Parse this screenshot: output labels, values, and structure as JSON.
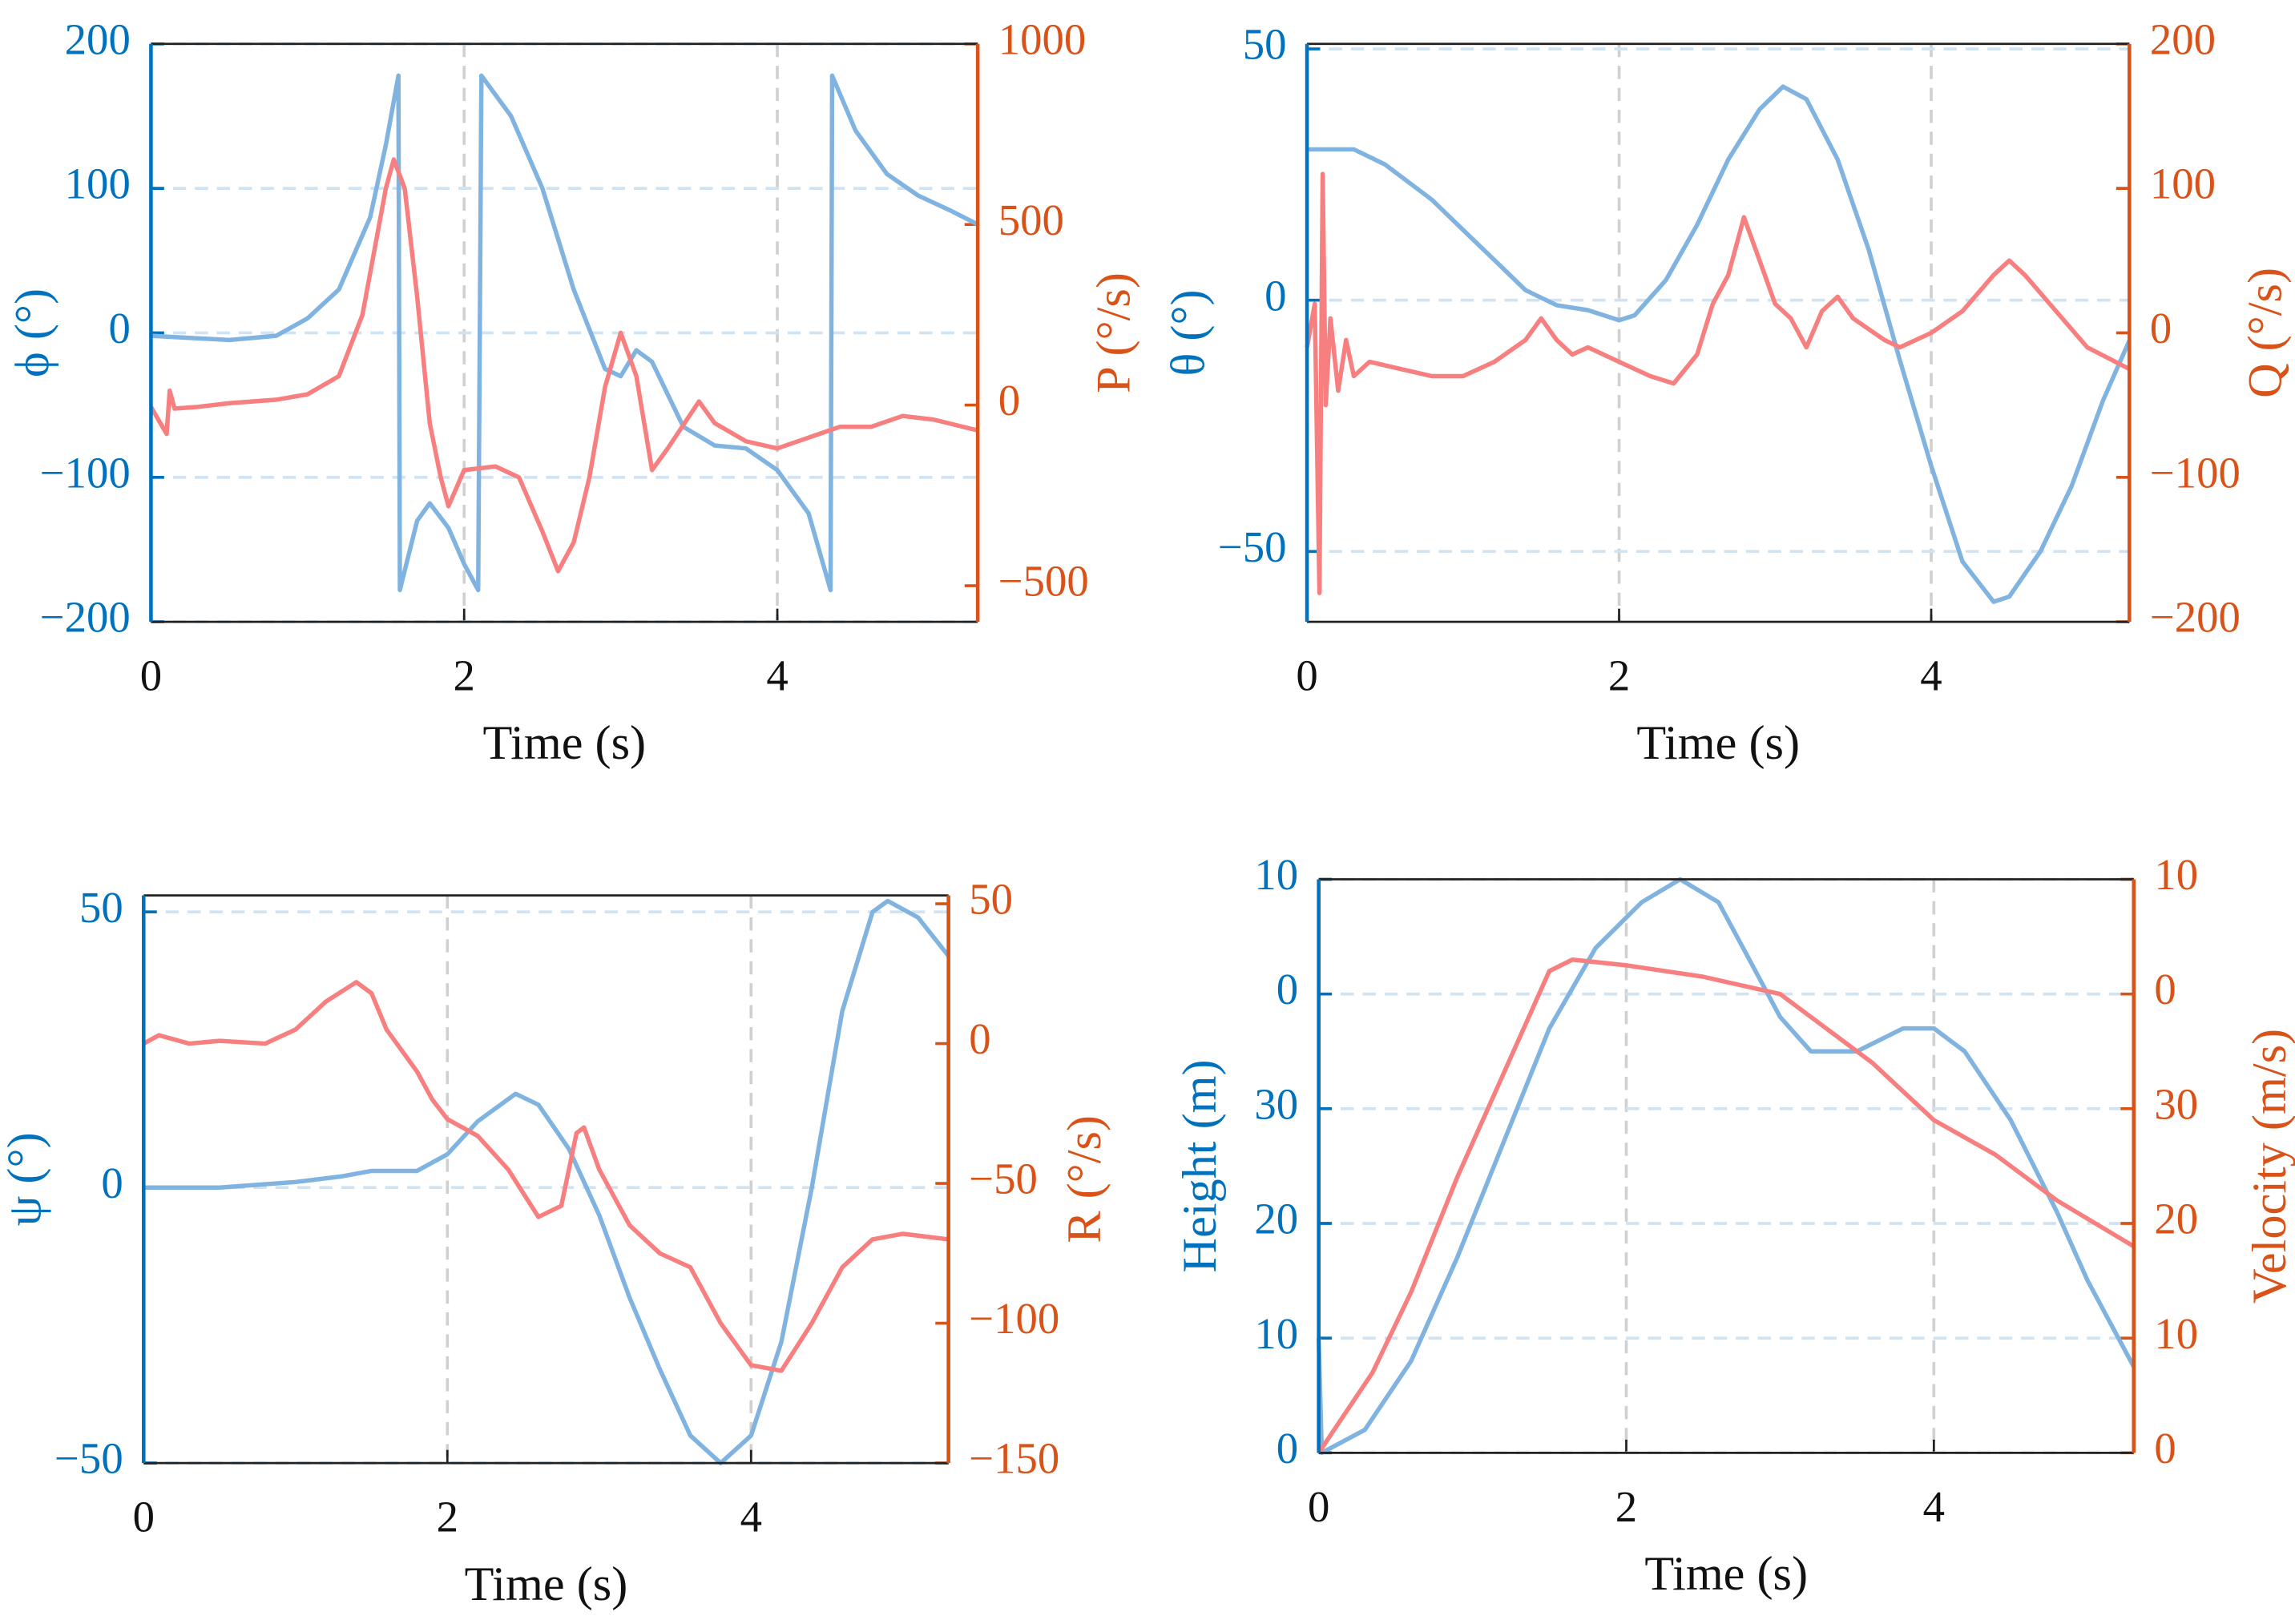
{
  "chart_data": [
    {
      "type": "line",
      "xlabel": "Time (s)",
      "ylabel": "ϕ (°)",
      "y2label": "P (°/s)",
      "xlim": [
        0,
        5.28
      ],
      "xticks": [
        0,
        2,
        4
      ],
      "ylim": [
        -200,
        200
      ],
      "yticks": [
        {
          "value": -200,
          "label": "−200"
        },
        {
          "value": -100,
          "label": "−100"
        },
        0,
        100,
        200
      ],
      "y2lim": [
        -600,
        1000
      ],
      "y2ticks": [
        {
          "value": -500,
          "label": "−500"
        },
        0,
        500,
        1000
      ],
      "grid": true,
      "ycolor": "#0072bd",
      "y2color": "#d95319",
      "series": [
        {
          "color": "#80b3e0",
          "x": [
            0,
            0.5,
            0.8,
            1.0,
            1.2,
            1.4,
            1.5,
            1.58,
            1.59,
            1.7,
            1.78,
            1.9,
            2.0,
            2.09,
            2.11,
            2.3,
            2.5,
            2.7,
            2.9,
            3.0,
            3.1,
            3.2,
            3.4,
            3.6,
            3.8,
            4.0,
            4.2,
            4.34,
            4.35,
            4.5,
            4.7,
            4.9,
            5.1,
            5.28
          ],
          "values": [
            -2,
            -5,
            -2,
            10,
            30,
            80,
            130,
            178,
            -178,
            -130,
            -118,
            -135,
            -160,
            -178,
            178,
            150,
            100,
            30,
            -25,
            -30,
            -12,
            -20,
            -65,
            -78,
            -80,
            -95,
            -125,
            -178,
            178,
            140,
            110,
            95,
            85,
            75
          ]
        },
        {
          "color": "#f77f7f",
          "axis": "y2",
          "x": [
            0,
            0.1,
            0.12,
            0.15,
            0.3,
            0.5,
            0.8,
            1.0,
            1.2,
            1.35,
            1.5,
            1.55,
            1.62,
            1.7,
            1.78,
            1.85,
            1.9,
            2.0,
            2.2,
            2.35,
            2.5,
            2.6,
            2.7,
            2.8,
            2.9,
            3.0,
            3.1,
            3.2,
            3.3,
            3.5,
            3.6,
            3.8,
            4.0,
            4.2,
            4.4,
            4.6,
            4.8,
            5.0,
            5.28
          ],
          "values": [
            -5,
            -80,
            40,
            -10,
            -5,
            5,
            15,
            30,
            80,
            250,
            600,
            680,
            600,
            300,
            -50,
            -200,
            -280,
            -180,
            -170,
            -200,
            -350,
            -460,
            -380,
            -200,
            50,
            200,
            80,
            -180,
            -120,
            10,
            -50,
            -100,
            -120,
            -90,
            -60,
            -60,
            -30,
            -40,
            -70
          ]
        }
      ]
    },
    {
      "type": "line",
      "xlabel": "Time (s)",
      "ylabel": "θ (°)",
      "y2label": "Q (°/s)",
      "xlim": [
        0,
        5.27
      ],
      "xticks": [
        0,
        2,
        4
      ],
      "ylim": [
        -64,
        51
      ],
      "yticks": [
        {
          "value": -50,
          "label": "−50"
        },
        0,
        50
      ],
      "y2lim": [
        -200,
        200
      ],
      "y2ticks": [
        {
          "value": -200,
          "label": "−200"
        },
        {
          "value": -100,
          "label": "−100"
        },
        0,
        100,
        200
      ],
      "grid": true,
      "ycolor": "#0072bd",
      "y2color": "#d95319",
      "series": [
        {
          "color": "#80b3e0",
          "x": [
            0,
            0.3,
            0.5,
            0.8,
            1.0,
            1.2,
            1.4,
            1.6,
            1.8,
            2.0,
            2.1,
            2.3,
            2.5,
            2.7,
            2.9,
            3.05,
            3.2,
            3.4,
            3.6,
            3.8,
            4.0,
            4.2,
            4.4,
            4.5,
            4.7,
            4.9,
            5.1,
            5.27
          ],
          "values": [
            30,
            30,
            27,
            20,
            14,
            8,
            2,
            -1,
            -2,
            -4,
            -3,
            4,
            15,
            28,
            38,
            42.5,
            40,
            28,
            10,
            -12,
            -33,
            -52,
            -60,
            -59,
            -50,
            -37,
            -20,
            -8
          ]
        },
        {
          "color": "#f77f7f",
          "axis": "y2",
          "x": [
            0,
            0.05,
            0.08,
            0.1,
            0.12,
            0.15,
            0.2,
            0.25,
            0.3,
            0.4,
            0.6,
            0.8,
            1.0,
            1.2,
            1.4,
            1.5,
            1.6,
            1.7,
            1.8,
            1.9,
            2.0,
            2.2,
            2.35,
            2.5,
            2.6,
            2.7,
            2.8,
            2.9,
            3.0,
            3.1,
            3.2,
            3.3,
            3.4,
            3.5,
            3.7,
            3.8,
            4.0,
            4.2,
            4.4,
            4.5,
            4.6,
            4.8,
            5.0,
            5.27
          ],
          "values": [
            -10,
            20,
            -180,
            110,
            -50,
            10,
            -40,
            -5,
            -30,
            -20,
            -25,
            -30,
            -30,
            -20,
            -5,
            10,
            -5,
            -15,
            -10,
            -15,
            -20,
            -30,
            -35,
            -15,
            20,
            40,
            80,
            50,
            20,
            10,
            -10,
            15,
            25,
            10,
            -5,
            -10,
            0,
            15,
            40,
            50,
            40,
            15,
            -10,
            -25
          ]
        }
      ]
    },
    {
      "type": "line",
      "xlabel": "Time (s)",
      "ylabel": "ψ (°)",
      "y2label": "R (°/s)",
      "xlim": [
        0,
        5.3
      ],
      "xticks": [
        0,
        2,
        4
      ],
      "ylim": [
        -50,
        53
      ],
      "yticks": [
        {
          "value": -50,
          "label": "−50"
        },
        0,
        50
      ],
      "y2lim": [
        -150,
        53
      ],
      "y2ticks": [
        {
          "value": -150,
          "label": "−150"
        },
        {
          "value": -100,
          "label": "−100"
        },
        {
          "value": -50,
          "label": "−50"
        },
        0,
        50
      ],
      "grid": true,
      "ycolor": "#0072bd",
      "y2color": "#d95319",
      "series": [
        {
          "color": "#80b3e0",
          "x": [
            0,
            0.5,
            1.0,
            1.3,
            1.5,
            1.8,
            2.0,
            2.2,
            2.45,
            2.6,
            2.8,
            3.0,
            3.2,
            3.4,
            3.6,
            3.8,
            4.0,
            4.2,
            4.4,
            4.6,
            4.8,
            4.9,
            5.1,
            5.3
          ],
          "values": [
            0,
            0,
            1,
            2,
            3,
            3,
            6,
            12,
            17,
            15,
            7,
            -5,
            -20,
            -33,
            -45,
            -50,
            -45,
            -28,
            0,
            32,
            50,
            52,
            49,
            42
          ]
        },
        {
          "color": "#f77f7f",
          "axis": "y2",
          "x": [
            0,
            0.1,
            0.3,
            0.5,
            0.8,
            1.0,
            1.2,
            1.4,
            1.5,
            1.6,
            1.8,
            1.9,
            2.0,
            2.2,
            2.4,
            2.6,
            2.75,
            2.85,
            2.9,
            3.0,
            3.2,
            3.4,
            3.6,
            3.8,
            4.0,
            4.2,
            4.4,
            4.6,
            4.8,
            5.0,
            5.3
          ],
          "values": [
            0,
            3,
            0,
            1,
            0,
            5,
            15,
            22,
            18,
            5,
            -10,
            -20,
            -27,
            -33,
            -45,
            -62,
            -58,
            -32,
            -30,
            -45,
            -65,
            -75,
            -80,
            -100,
            -115,
            -117,
            -100,
            -80,
            -70,
            -68,
            -70
          ]
        }
      ]
    },
    {
      "type": "line",
      "xlabel": "Time (s)",
      "ylabel": "Height (m)",
      "y2label": "Velocity (m/s)",
      "xlim": [
        0,
        5.3
      ],
      "xticks": [
        0,
        2,
        4
      ],
      "ylim": [
        0,
        50
      ],
      "yticks": [
        0,
        10,
        20,
        30,
        {
          "value": 40,
          "label": "0"
        },
        {
          "value": 50,
          "label": "10"
        }
      ],
      "y2lim": [
        0,
        50
      ],
      "y2ticks": [
        0,
        10,
        20,
        30,
        {
          "value": 40,
          "label": "0"
        },
        {
          "value": 50,
          "label": "10"
        }
      ],
      "grid": true,
      "ycolor": "#0072bd",
      "y2color": "#d95319",
      "series": [
        {
          "color": "#80b3e0",
          "x": [
            0,
            0.02,
            0.3,
            0.6,
            0.9,
            1.2,
            1.5,
            1.8,
            2.1,
            2.35,
            2.6,
            2.8,
            3.0,
            3.2,
            3.5,
            3.8,
            4.0,
            4.2,
            4.5,
            4.8,
            5.0,
            5.3
          ],
          "values": [
            10,
            0,
            2,
            8,
            17,
            27,
            37,
            44,
            48,
            50,
            48,
            43,
            38,
            35,
            35,
            37,
            37,
            35,
            29,
            21,
            15,
            7.5
          ]
        },
        {
          "color": "#f77f7f",
          "axis": "y2",
          "x": [
            0,
            0.35,
            0.6,
            0.9,
            1.2,
            1.5,
            1.65,
            2.0,
            2.5,
            3.0,
            3.3,
            3.6,
            4.0,
            4.4,
            4.8,
            5.3
          ],
          "values": [
            0,
            7,
            14,
            24,
            33,
            42,
            43,
            42.5,
            41.5,
            40,
            37,
            34,
            29,
            26,
            22,
            18
          ]
        }
      ]
    }
  ]
}
